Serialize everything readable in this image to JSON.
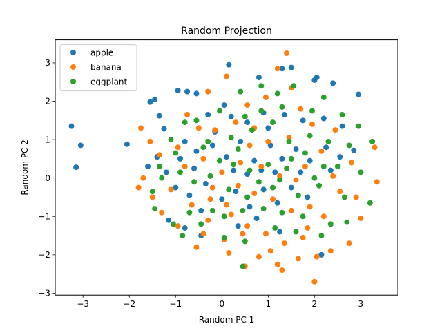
{
  "chart_data": {
    "type": "scatter",
    "title": "Random Projection",
    "xlabel": "Random PC 1",
    "ylabel": "Random PC 2",
    "xlim": [
      -3.6,
      3.8
    ],
    "ylim": [
      -3.05,
      3.6
    ],
    "xticks": [
      -3,
      -2,
      -1,
      0,
      1,
      2,
      3
    ],
    "yticks": [
      -3,
      -2,
      -1,
      0,
      1,
      2,
      3
    ],
    "grid": false,
    "legend": "top-left",
    "series": [
      {
        "name": "apple",
        "color": "#1f77b4",
        "points": [
          [
            -3.25,
            1.35
          ],
          [
            -3.05,
            0.85
          ],
          [
            -3.15,
            0.28
          ],
          [
            -2.05,
            0.88
          ],
          [
            -1.55,
            1.98
          ],
          [
            -1.45,
            2.05
          ],
          [
            -1.35,
            1.62
          ],
          [
            -1.25,
            1.28
          ],
          [
            -1.4,
            0.55
          ],
          [
            -1.6,
            0.3
          ],
          [
            -1.2,
            0.15
          ],
          [
            -0.95,
            2.28
          ],
          [
            -0.75,
            2.25
          ],
          [
            -0.55,
            2.2
          ],
          [
            0.15,
            2.95
          ],
          [
            0.8,
            2.62
          ],
          [
            1.3,
            2.85
          ],
          [
            1.5,
            2.88
          ],
          [
            2.0,
            2.55
          ],
          [
            2.05,
            2.62
          ],
          [
            2.4,
            2.47
          ],
          [
            2.95,
            2.18
          ],
          [
            -0.3,
            1.65
          ],
          [
            0.2,
            1.6
          ],
          [
            0.55,
            1.45
          ],
          [
            0.9,
            1.7
          ],
          [
            1.35,
            1.65
          ],
          [
            1.75,
            1.5
          ],
          [
            2.2,
            1.55
          ],
          [
            2.6,
            1.35
          ],
          [
            -0.8,
            0.95
          ],
          [
            -0.55,
            0.7
          ],
          [
            -0.2,
            0.85
          ],
          [
            0.1,
            0.55
          ],
          [
            0.4,
            0.95
          ],
          [
            0.7,
            0.45
          ],
          [
            1.05,
            0.85
          ],
          [
            1.3,
            0.5
          ],
          [
            1.6,
            0.75
          ],
          [
            1.9,
            0.45
          ],
          [
            2.25,
            0.8
          ],
          [
            2.55,
            0.55
          ],
          [
            2.85,
            0.72
          ],
          [
            -1.0,
            -0.25
          ],
          [
            -0.7,
            -0.45
          ],
          [
            -0.35,
            -0.15
          ],
          [
            0.0,
            -0.55
          ],
          [
            0.3,
            -0.35
          ],
          [
            0.6,
            -0.75
          ],
          [
            0.9,
            -0.3
          ],
          [
            1.2,
            -0.65
          ],
          [
            1.5,
            -0.25
          ],
          [
            1.85,
            -0.5
          ],
          [
            -1.15,
            -1.1
          ],
          [
            -0.8,
            -1.3
          ],
          [
            -0.45,
            -1.5
          ],
          [
            0.35,
            -1.25
          ],
          [
            0.75,
            -1.05
          ],
          [
            1.25,
            -1.4
          ],
          [
            2.15,
            -2.0
          ],
          [
            -0.15,
            1.2
          ],
          [
            0.25,
            0.2
          ],
          [
            0.55,
            0.1
          ],
          [
            0.85,
            0.2
          ],
          [
            1.15,
            0.15
          ],
          [
            -0.6,
            0.25
          ],
          [
            -0.9,
            0.5
          ],
          [
            1.7,
            0.15
          ],
          [
            2.35,
            0.2
          ],
          [
            -0.45,
            -0.85
          ],
          [
            0.05,
            1.9
          ],
          [
            1.0,
            1.3
          ]
        ]
      },
      {
        "name": "banana",
        "color": "#ff7f0e",
        "points": [
          [
            -1.75,
            1.3
          ],
          [
            -1.55,
            0.95
          ],
          [
            -1.7,
            0.0
          ],
          [
            -1.8,
            -0.25
          ],
          [
            -1.5,
            -0.5
          ],
          [
            -1.3,
            -0.9
          ],
          [
            -0.95,
            -1.25
          ],
          [
            -0.55,
            -1.8
          ],
          [
            -0.3,
            -1.1
          ],
          [
            0.1,
            -0.7
          ],
          [
            0.45,
            -1.45
          ],
          [
            0.8,
            -2.05
          ],
          [
            1.2,
            -2.25
          ],
          [
            1.3,
            -2.4
          ],
          [
            1.65,
            -2.1
          ],
          [
            2.05,
            -2.05
          ],
          [
            2.35,
            -1.9
          ],
          [
            2.75,
            -1.7
          ],
          [
            3.0,
            -1.05
          ],
          [
            3.35,
            -0.1
          ],
          [
            3.3,
            0.8
          ],
          [
            2.8,
            0.4
          ],
          [
            2.15,
            0.7
          ],
          [
            2.45,
            1.25
          ],
          [
            1.95,
            1.4
          ],
          [
            1.5,
            2.35
          ],
          [
            1.4,
            3.25
          ],
          [
            1.2,
            2.85
          ],
          [
            0.1,
            2.65
          ],
          [
            -0.3,
            2.25
          ],
          [
            -0.75,
            1.65
          ],
          [
            -0.5,
            1.3
          ],
          [
            -0.15,
            1.25
          ],
          [
            0.3,
            1.45
          ],
          [
            0.6,
            0.85
          ],
          [
            1.0,
            0.95
          ],
          [
            1.45,
            1.05
          ],
          [
            1.8,
            0.3
          ],
          [
            2.55,
            -0.35
          ],
          [
            2.2,
            -1.0
          ],
          [
            1.85,
            -1.3
          ],
          [
            1.5,
            -0.85
          ],
          [
            1.1,
            -0.55
          ],
          [
            0.7,
            -0.4
          ],
          [
            0.35,
            -0.2
          ],
          [
            0.0,
            0.15
          ],
          [
            -0.4,
            0.5
          ],
          [
            -0.8,
            0.3
          ],
          [
            -1.1,
            -0.3
          ],
          [
            -0.65,
            -0.7
          ],
          [
            -0.25,
            -0.55
          ],
          [
            0.2,
            -0.95
          ],
          [
            0.55,
            -1.25
          ],
          [
            0.95,
            -1.45
          ],
          [
            1.35,
            -1.7
          ],
          [
            1.75,
            -1.55
          ],
          [
            2.0,
            -2.7
          ],
          [
            0.5,
            -2.3
          ],
          [
            0.05,
            -1.6
          ],
          [
            -0.4,
            -1.45
          ],
          [
            0.85,
            0.3
          ],
          [
            1.25,
            0.05
          ],
          [
            1.6,
            -0.05
          ],
          [
            0.4,
            0.4
          ],
          [
            -0.2,
            -0.25
          ],
          [
            2.4,
            0.05
          ],
          [
            0.95,
            2.1
          ],
          [
            0.55,
            1.9
          ],
          [
            -0.95,
            0.8
          ],
          [
            1.7,
            1.8
          ],
          [
            2.9,
            -0.5
          ],
          [
            0.15,
            -1.95
          ],
          [
            1.05,
            -1.9
          ],
          [
            1.9,
            -0.75
          ],
          [
            -1.35,
            0.6
          ],
          [
            0.7,
            1.3
          ]
        ]
      },
      {
        "name": "eggplant",
        "color": "#2ca02c",
        "points": [
          [
            -1.1,
            1.0
          ],
          [
            -1.0,
            0.65
          ],
          [
            -1.35,
            0.3
          ],
          [
            -1.5,
            -0.35
          ],
          [
            -1.45,
            -0.8
          ],
          [
            -1.05,
            -1.2
          ],
          [
            -0.85,
            -1.5
          ],
          [
            -0.45,
            -1.2
          ],
          [
            0.05,
            -1.55
          ],
          [
            0.5,
            -1.65
          ],
          [
            0.45,
            -2.3
          ],
          [
            1.15,
            -1.3
          ],
          [
            1.75,
            -1.0
          ],
          [
            2.15,
            -1.5
          ],
          [
            2.7,
            -1.15
          ],
          [
            3.2,
            -0.65
          ],
          [
            3.0,
            0.15
          ],
          [
            3.25,
            0.95
          ],
          [
            2.95,
            1.35
          ],
          [
            2.6,
            1.65
          ],
          [
            2.2,
            2.1
          ],
          [
            1.55,
            2.4
          ],
          [
            1.2,
            2.2
          ],
          [
            0.85,
            2.4
          ],
          [
            0.4,
            2.25
          ],
          [
            -0.05,
            1.75
          ],
          [
            -0.55,
            1.5
          ],
          [
            -0.8,
            1.45
          ],
          [
            -0.3,
            0.95
          ],
          [
            0.2,
            1.05
          ],
          [
            0.65,
            1.25
          ],
          [
            1.1,
            1.45
          ],
          [
            1.45,
            0.95
          ],
          [
            1.9,
            1.1
          ],
          [
            2.3,
            0.95
          ],
          [
            2.75,
            0.85
          ],
          [
            2.5,
            0.3
          ],
          [
            2.1,
            -0.2
          ],
          [
            1.65,
            -0.45
          ],
          [
            1.3,
            -0.9
          ],
          [
            0.9,
            -0.8
          ],
          [
            0.55,
            -0.5
          ],
          [
            0.15,
            -0.3
          ],
          [
            -0.25,
            0.05
          ],
          [
            -0.6,
            -0.1
          ],
          [
            -0.9,
            0.15
          ],
          [
            -0.7,
            -0.9
          ],
          [
            -0.2,
            -0.85
          ],
          [
            0.25,
            0.35
          ],
          [
            0.6,
            0.2
          ],
          [
            1.0,
            0.35
          ],
          [
            1.4,
            0.25
          ],
          [
            1.8,
            0.65
          ],
          [
            2.2,
            0.3
          ],
          [
            0.8,
            -0.1
          ],
          [
            1.1,
            -0.25
          ],
          [
            1.5,
            0.5
          ],
          [
            0.35,
            0.75
          ],
          [
            -0.05,
            0.45
          ],
          [
            -0.4,
            0.8
          ],
          [
            1.6,
            -1.4
          ],
          [
            2.35,
            -1.2
          ],
          [
            0.85,
            1.75
          ],
          [
            1.3,
            1.85
          ],
          [
            0.5,
            1.6
          ],
          [
            1.95,
            1.75
          ],
          [
            2.65,
            -0.5
          ],
          [
            0.05,
            -1.0
          ],
          [
            -1.3,
            0.0
          ],
          [
            2.0,
            0.0
          ],
          [
            1.25,
            -0.05
          ],
          [
            0.45,
            -0.85
          ]
        ]
      }
    ]
  }
}
